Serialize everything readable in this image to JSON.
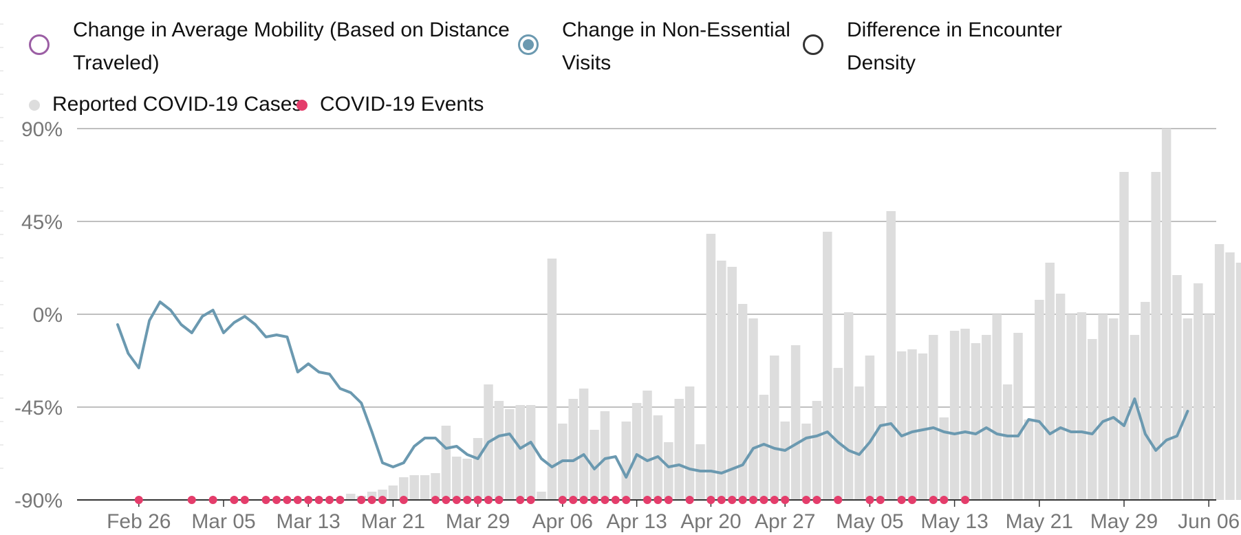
{
  "legend": {
    "items": [
      {
        "label": "Change in Average Mobility (Based on Distance Traveled)",
        "line1": "Change in Average Mobility (Based on Distance",
        "line2": "Traveled)",
        "color": "#9b5ea4",
        "icon": "ring-icon"
      },
      {
        "label": "Change in Non-Essential Visits",
        "line1": "Change in Non-Essential",
        "line2": "Visits",
        "color": "#6b99b0",
        "icon": "ring-filled-icon"
      },
      {
        "label": "Difference in Encounter Density",
        "line1": "Difference in Encounter",
        "line2": "Density",
        "color": "#333333",
        "icon": "ring-icon"
      },
      {
        "label": "Reported COVID-19 Cases",
        "color": "#dddddd",
        "icon": "dot-icon"
      },
      {
        "label": "COVID-19 Events",
        "color": "#e43d6b",
        "icon": "dot-icon"
      }
    ]
  },
  "chart_data": {
    "type": "bar+line",
    "y_tick_labels": [
      "90%",
      "45%",
      "0%",
      "-45%",
      "-90%"
    ],
    "y_ticks": [
      90,
      45,
      0,
      -45,
      -90
    ],
    "ylim": [
      -90,
      90
    ],
    "x_tick_labels": [
      "Feb 26",
      "Mar 05",
      "Mar 13",
      "Mar 21",
      "Mar 29",
      "Apr 06",
      "Apr 13",
      "Apr 20",
      "Apr 27",
      "May 05",
      "May 13",
      "May 21",
      "May 29",
      "Jun 06"
    ],
    "x_ticks_day_index": [
      2,
      10,
      18,
      26,
      34,
      42,
      49,
      56,
      63,
      71,
      79,
      87,
      95,
      103
    ],
    "day_index_note_start": "Feb 24",
    "grid": true,
    "series": [
      {
        "name": "Reported COVID-19 Cases",
        "kind": "bar",
        "color": "#dddddd",
        "start_day": 22,
        "values": [
          -87,
          -88,
          -86,
          -85,
          -83,
          -79,
          -78,
          -78,
          -77,
          -54,
          -69,
          -70,
          -60,
          -34,
          -42,
          -46,
          -44,
          -44,
          -86,
          27,
          -53,
          -41,
          -36,
          -56,
          -47,
          -92,
          -52,
          -43,
          -37,
          -49,
          -62,
          -41,
          -35,
          -63,
          39,
          26,
          23,
          5,
          -2,
          -39,
          -20,
          -52,
          -15,
          -53,
          -42,
          40,
          -26,
          1,
          -35,
          -20,
          -45,
          50,
          -18,
          -17,
          -19,
          -10,
          -50,
          -8,
          -7,
          -14,
          -10,
          0,
          -34,
          -9,
          -51,
          7,
          25,
          10,
          0,
          1,
          -12,
          0,
          -2,
          69,
          -10,
          6,
          69,
          90,
          19,
          -2,
          15,
          0,
          34,
          30,
          25
        ]
      },
      {
        "name": "Change in Non-Essential Visits",
        "kind": "line",
        "color": "#6b99b0",
        "start_day": 0,
        "values": [
          -5,
          -19,
          -26,
          -3,
          6,
          2,
          -5,
          -9,
          -1,
          2,
          -9,
          -4,
          -1,
          -5,
          -11,
          -10,
          -11,
          -28,
          -24,
          -28,
          -29,
          -36,
          -38,
          -43,
          -57,
          -72,
          -74,
          -72,
          -64,
          -60,
          -60,
          -65,
          -64,
          -68,
          -70,
          -62,
          -59,
          -58,
          -65,
          -62,
          -70,
          -74,
          -71,
          -71,
          -68,
          -75,
          -70,
          -69,
          -79,
          -68,
          -71,
          -69,
          -74,
          -73,
          -75,
          -76,
          -76,
          -77,
          -75,
          -73,
          -65,
          -63,
          -65,
          -66,
          -63,
          -60,
          -59,
          -57,
          -62,
          -66,
          -68,
          -62,
          -54,
          -53,
          -59,
          -57,
          -56,
          -55,
          -57,
          -58,
          -57,
          -58,
          -55,
          -58,
          -59,
          -59,
          -51,
          -52,
          -58,
          -55,
          -57,
          -57,
          -58,
          -52,
          -50,
          -54,
          -41,
          -58,
          -66,
          -61,
          -59,
          -47
        ]
      },
      {
        "name": "COVID-19 Events",
        "kind": "event",
        "color": "#e43d6b",
        "days": [
          2,
          7,
          9,
          11,
          12,
          14,
          15,
          16,
          17,
          18,
          19,
          20,
          21,
          23,
          24,
          25,
          27,
          30,
          31,
          32,
          33,
          34,
          35,
          36,
          38,
          39,
          42,
          43,
          44,
          45,
          46,
          47,
          48,
          50,
          51,
          52,
          54,
          56,
          57,
          58,
          59,
          60,
          61,
          62,
          63,
          65,
          66,
          68,
          71,
          72,
          74,
          75,
          77,
          78,
          80
        ]
      }
    ]
  }
}
